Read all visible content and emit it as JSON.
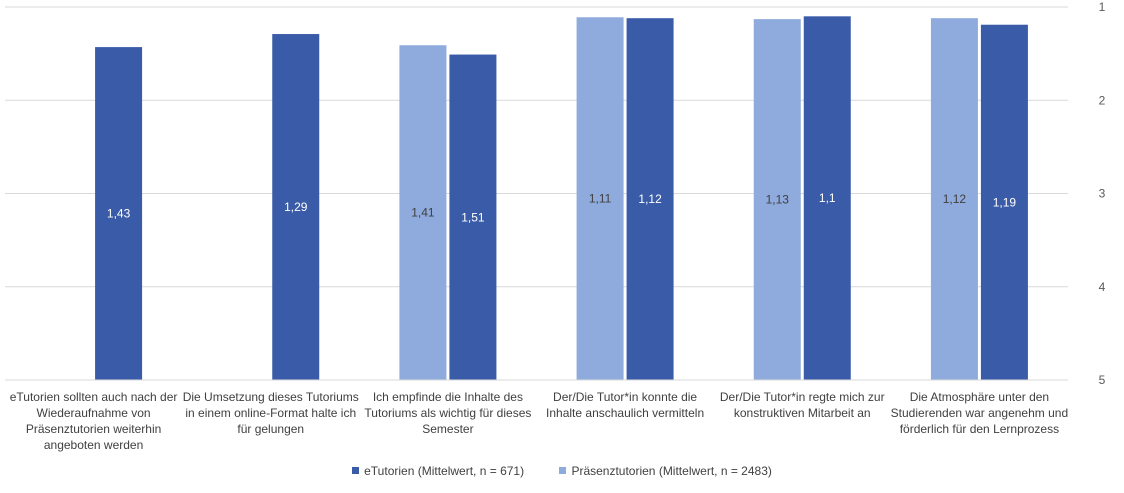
{
  "chart_data": {
    "type": "bar",
    "title": "",
    "xlabel": "",
    "ylabel": "",
    "ylim": [
      1,
      5
    ],
    "y_inverted": true,
    "y_axis_side": "right",
    "yticks": [
      "1",
      "2",
      "3",
      "4",
      "5"
    ],
    "grid": true,
    "legend_position": "bottom",
    "categories": [
      "eTutorien sollten auch nach der Wiederaufnahme von Präsenztutorien weiterhin angeboten werden",
      "Die Umsetzung dieses Tutoriums in einem online-Format halte ich für gelungen",
      "Ich empfinde die Inhalte des Tutoriums als wichtig für dieses Semester",
      "Der/Die Tutor*in konnte die Inhalte anschaulich vermitteln",
      "Der/Die Tutor*in regte mich zur konstruktiven Mitarbeit an",
      "Die Atmosphäre unter den Studierenden war angenehm und förderlich für den Lernprozess"
    ],
    "series": [
      {
        "name": "Präsenztutorien (Mittelwert, n = 2483)",
        "color": "#8faadc",
        "values": [
          null,
          null,
          1.41,
          1.11,
          1.13,
          1.12
        ],
        "labels": [
          "",
          "",
          "1,41",
          "1,11",
          "1,13",
          "1,12"
        ]
      },
      {
        "name": "eTutorien (Mittelwert, n = 671)",
        "color": "#3a5ba8",
        "values": [
          1.43,
          1.29,
          1.51,
          1.12,
          1.1,
          1.19
        ],
        "labels": [
          "1,43",
          "1,29",
          "1,51",
          "1,12",
          "1,1",
          "1,19"
        ]
      }
    ],
    "legend": [
      {
        "label": "eTutorien (Mittelwert, n = 671)",
        "color": "#3a5ba8"
      },
      {
        "label": "Präsenztutorien (Mittelwert, n = 2483)",
        "color": "#8faadc"
      }
    ]
  }
}
